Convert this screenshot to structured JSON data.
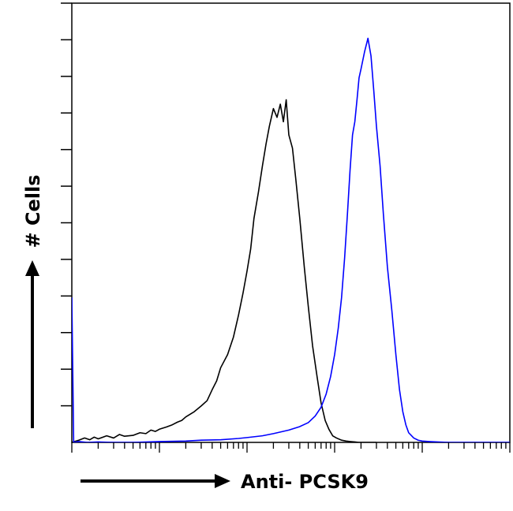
{
  "chart_data": {
    "type": "line",
    "title": "",
    "xlabel": "Anti- PCSK9",
    "ylabel": "# Cells",
    "x_scale": "log",
    "xlim": [
      1,
      100000
    ],
    "ylim": [
      0,
      100
    ],
    "x_tick_labels": [],
    "y_tick_labels": [],
    "grid": false,
    "legend": "none",
    "series": [
      {
        "color": "#000000",
        "x": [
          1,
          1.2,
          1.4,
          1.6,
          1.8,
          2,
          2.5,
          3,
          3.5,
          4,
          5,
          6,
          7,
          8,
          9,
          10,
          12,
          14,
          16,
          18,
          20,
          25,
          30,
          35,
          40,
          45,
          50,
          60,
          70,
          80,
          90,
          100,
          110,
          120,
          135,
          150,
          165,
          180,
          200,
          220,
          240,
          260,
          280,
          300,
          330,
          360,
          400,
          450,
          500,
          560,
          630,
          700,
          780,
          860,
          950,
          1050,
          1200,
          1350,
          1500,
          1700,
          1900,
          2200,
          2500,
          3000
        ],
        "y": [
          0,
          0.5,
          1,
          0.6,
          1.2,
          0.8,
          1.5,
          1,
          1.8,
          1.4,
          1.6,
          2.2,
          2,
          2.8,
          2.5,
          3,
          3.5,
          4,
          4.6,
          5,
          5.8,
          7,
          8.3,
          9.5,
          12,
          14,
          17,
          20,
          24,
          29,
          34,
          39,
          44,
          51,
          57,
          63,
          68,
          72,
          76,
          74,
          77,
          73,
          78,
          70,
          67,
          60,
          51,
          40,
          31,
          22,
          15,
          9,
          5,
          3,
          1.5,
          1,
          0.5,
          0.3,
          0.2,
          0.1,
          0,
          0,
          0,
          0
        ]
      },
      {
        "color": "#0000ff",
        "x": [
          1,
          1.05,
          1.2,
          1.5,
          2,
          3,
          5,
          10,
          20,
          30,
          50,
          80,
          100,
          150,
          200,
          300,
          400,
          500,
          600,
          700,
          800,
          900,
          1000,
          1100,
          1200,
          1300,
          1400,
          1500,
          1600,
          1700,
          1800,
          1900,
          2000,
          2200,
          2400,
          2600,
          2800,
          3000,
          3300,
          3600,
          4000,
          4500,
          5000,
          5500,
          6000,
          6500,
          7000,
          8000,
          9000,
          10000,
          12000,
          15000,
          20000,
          30000,
          100000
        ],
        "y": [
          33,
          0,
          0.2,
          0,
          0.1,
          0,
          0,
          0.2,
          0.3,
          0.5,
          0.6,
          0.9,
          1.1,
          1.5,
          2,
          2.8,
          3.6,
          4.5,
          6,
          8,
          11,
          15,
          20,
          26,
          33,
          42,
          52,
          62,
          70,
          73,
          78,
          83,
          85,
          89,
          92,
          88,
          80,
          72,
          63,
          52,
          40,
          30,
          20,
          12,
          7,
          4,
          2.2,
          1,
          0.5,
          0.3,
          0.2,
          0.1,
          0,
          0,
          0
        ]
      }
    ]
  }
}
